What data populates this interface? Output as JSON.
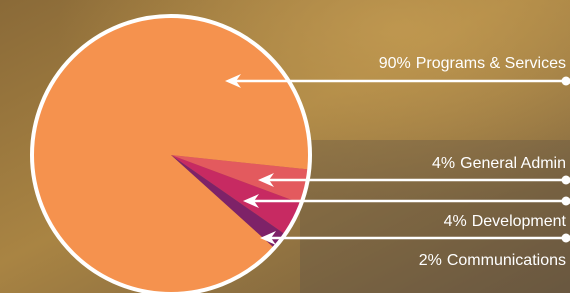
{
  "chart_data": {
    "type": "pie",
    "categories": [
      "Programs & Services",
      "General Admin",
      "Development",
      "Communications"
    ],
    "values": [
      90,
      4,
      4,
      2
    ],
    "value_labels": [
      "90%",
      "4%",
      "4%",
      "2%"
    ],
    "colors": [
      "#f5924e",
      "#e35a5e",
      "#c72a62",
      "#7e2268"
    ]
  }
}
